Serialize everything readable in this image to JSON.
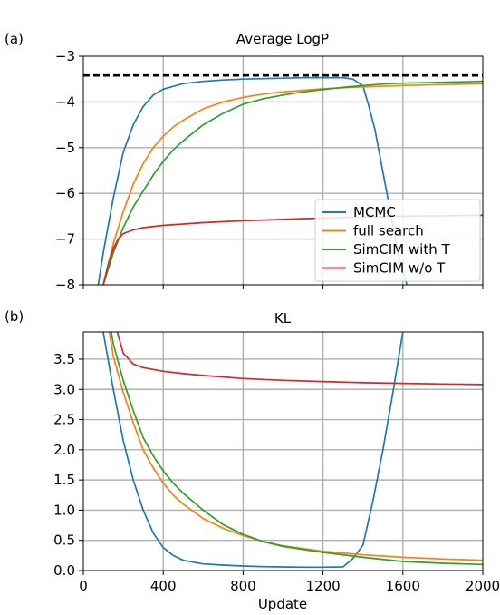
{
  "colors": {
    "mcmc": "#1f77b4",
    "full_search": "#ff7f0e",
    "simcim_t": "#2ca02c",
    "simcim_wo_t": "#d62728",
    "grid": "#b0b0b0",
    "reference_line": "#000000"
  },
  "chart_data": [
    {
      "panel_label": "(a)",
      "type": "line",
      "title": "Average LogP",
      "xlabel": "",
      "ylabel": "",
      "xlim": [
        0,
        2000
      ],
      "ylim": [
        -8,
        -3
      ],
      "xticks": [
        0,
        400,
        800,
        1200,
        1600,
        2000
      ],
      "xtick_labels_shown": false,
      "yticks": [
        -8,
        -7,
        -6,
        -5,
        -4,
        -3
      ],
      "ytick_labels": [
        "−8",
        "−7",
        "−6",
        "−5",
        "−4",
        "−3"
      ],
      "grid": true,
      "legend": "lower-right",
      "reference_line": {
        "y": -3.42,
        "style": "dashed"
      },
      "series": [
        {
          "name": "MCMC",
          "color": "#1f77b4",
          "x": [
            75,
            100,
            150,
            200,
            250,
            300,
            350,
            400,
            500,
            600,
            700,
            800,
            900,
            1000,
            1100,
            1200,
            1300,
            1350,
            1400,
            1430,
            1460,
            1490,
            1520,
            1550,
            1580,
            1620
          ],
          "y": [
            -8.0,
            -7.3,
            -6.1,
            -5.1,
            -4.5,
            -4.1,
            -3.85,
            -3.72,
            -3.6,
            -3.55,
            -3.52,
            -3.5,
            -3.49,
            -3.48,
            -3.47,
            -3.47,
            -3.47,
            -3.5,
            -3.65,
            -4.1,
            -4.6,
            -5.3,
            -6.0,
            -6.7,
            -7.4,
            -8.0
          ]
        },
        {
          "name": "full search",
          "color": "#ff7f0e",
          "x": [
            100,
            150,
            200,
            250,
            300,
            350,
            400,
            450,
            500,
            600,
            700,
            800,
            900,
            1000,
            1200,
            1400,
            1600,
            1800,
            2000
          ],
          "y": [
            -8.0,
            -7.1,
            -6.4,
            -5.8,
            -5.35,
            -5.0,
            -4.75,
            -4.55,
            -4.4,
            -4.15,
            -4.0,
            -3.9,
            -3.83,
            -3.78,
            -3.71,
            -3.67,
            -3.64,
            -3.62,
            -3.6
          ]
        },
        {
          "name": "SimCIM with T",
          "color": "#2ca02c",
          "x": [
            100,
            150,
            200,
            250,
            300,
            350,
            400,
            450,
            500,
            600,
            700,
            800,
            900,
            1000,
            1100,
            1200,
            1300,
            1400,
            1500,
            1600,
            1700,
            1800,
            1900,
            2000
          ],
          "y": [
            -8.0,
            -7.3,
            -6.75,
            -6.3,
            -5.95,
            -5.6,
            -5.3,
            -5.05,
            -4.85,
            -4.5,
            -4.25,
            -4.05,
            -3.93,
            -3.85,
            -3.78,
            -3.73,
            -3.68,
            -3.64,
            -3.61,
            -3.59,
            -3.58,
            -3.57,
            -3.56,
            -3.55
          ]
        },
        {
          "name": "SimCIM w/o T",
          "color": "#d62728",
          "x": [
            100,
            125,
            150,
            175,
            200,
            250,
            300,
            400,
            500,
            600,
            800,
            1000,
            1200,
            1400,
            1600,
            1800,
            2000
          ],
          "y": [
            -8.0,
            -7.55,
            -7.2,
            -7.0,
            -6.88,
            -6.8,
            -6.75,
            -6.7,
            -6.67,
            -6.64,
            -6.6,
            -6.57,
            -6.54,
            -6.52,
            -6.5,
            -6.49,
            -6.48
          ]
        }
      ]
    },
    {
      "panel_label": "(b)",
      "type": "line",
      "title": "KL",
      "xlabel": "Update",
      "ylabel": "",
      "xlim": [
        0,
        2000
      ],
      "ylim": [
        0,
        3.95
      ],
      "xticks": [
        0,
        400,
        800,
        1200,
        1600,
        2000
      ],
      "xtick_labels": [
        "0",
        "400",
        "800",
        "1200",
        "1600",
        "2000"
      ],
      "yticks": [
        0.0,
        0.5,
        1.0,
        1.5,
        2.0,
        2.5,
        3.0,
        3.5
      ],
      "ytick_labels": [
        "0.0",
        "0.5",
        "1.0",
        "1.5",
        "2.0",
        "2.5",
        "3.0",
        "3.5"
      ],
      "grid": true,
      "series": [
        {
          "name": "MCMC",
          "color": "#1f77b4",
          "x": [
            100,
            150,
            200,
            250,
            300,
            350,
            400,
            450,
            500,
            600,
            700,
            800,
            900,
            1000,
            1100,
            1200,
            1300,
            1350,
            1400,
            1450,
            1500,
            1550,
            1600
          ],
          "y": [
            3.95,
            3.0,
            2.15,
            1.5,
            1.0,
            0.62,
            0.38,
            0.25,
            0.17,
            0.11,
            0.09,
            0.075,
            0.065,
            0.06,
            0.055,
            0.055,
            0.06,
            0.2,
            0.42,
            1.15,
            2.0,
            2.95,
            3.95
          ]
        },
        {
          "name": "full search",
          "color": "#ff7f0e",
          "x": [
            130,
            150,
            200,
            250,
            300,
            350,
            400,
            450,
            500,
            600,
            700,
            800,
            900,
            1000,
            1200,
            1400,
            1600,
            1800,
            2000
          ],
          "y": [
            3.95,
            3.55,
            2.95,
            2.45,
            2.0,
            1.7,
            1.45,
            1.25,
            1.1,
            0.86,
            0.7,
            0.58,
            0.48,
            0.41,
            0.32,
            0.26,
            0.22,
            0.19,
            0.17
          ]
        },
        {
          "name": "SimCIM with T",
          "color": "#2ca02c",
          "x": [
            140,
            150,
            200,
            250,
            300,
            350,
            400,
            450,
            500,
            600,
            700,
            800,
            900,
            1000,
            1200,
            1400,
            1600,
            1800,
            2000
          ],
          "y": [
            3.95,
            3.75,
            3.15,
            2.65,
            2.2,
            1.9,
            1.65,
            1.45,
            1.28,
            1.0,
            0.76,
            0.6,
            0.48,
            0.4,
            0.3,
            0.22,
            0.15,
            0.12,
            0.1
          ]
        },
        {
          "name": "SimCIM w/o T",
          "color": "#d62728",
          "x": [
            170,
            200,
            250,
            300,
            400,
            500,
            600,
            800,
            1000,
            1200,
            1400,
            1600,
            1800,
            2000
          ],
          "y": [
            3.95,
            3.6,
            3.42,
            3.36,
            3.3,
            3.26,
            3.23,
            3.18,
            3.15,
            3.13,
            3.11,
            3.1,
            3.09,
            3.08
          ]
        }
      ]
    }
  ]
}
